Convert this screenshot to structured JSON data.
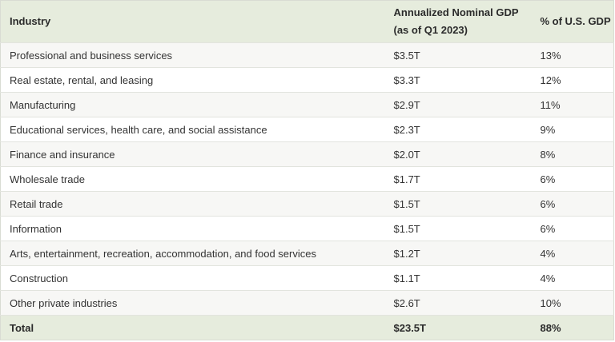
{
  "table": {
    "headers": {
      "industry": "Industry",
      "gdp": "Annualized Nominal GDP (as of Q1 2023)",
      "share": "% of U.S. GDP"
    },
    "rows": [
      {
        "industry": "Professional and business services",
        "gdp": "$3.5T",
        "share": "13%"
      },
      {
        "industry": "Real estate, rental, and leasing",
        "gdp": "$3.3T",
        "share": "12%"
      },
      {
        "industry": "Manufacturing",
        "gdp": "$2.9T",
        "share": "11%"
      },
      {
        "industry": "Educational services, health care, and social assistance",
        "gdp": "$2.3T",
        "share": "9%"
      },
      {
        "industry": "Finance and insurance",
        "gdp": "$2.0T",
        "share": "8%"
      },
      {
        "industry": "Wholesale trade",
        "gdp": "$1.7T",
        "share": "6%"
      },
      {
        "industry": "Retail trade",
        "gdp": "$1.5T",
        "share": "6%"
      },
      {
        "industry": "Information",
        "gdp": "$1.5T",
        "share": "6%"
      },
      {
        "industry": "Arts, entertainment, recreation, accommodation, and food services",
        "gdp": "$1.2T",
        "share": "4%"
      },
      {
        "industry": "Construction",
        "gdp": "$1.1T",
        "share": "4%"
      },
      {
        "industry": "Other private industries",
        "gdp": "$2.6T",
        "share": "10%"
      }
    ],
    "total": {
      "industry": "Total",
      "gdp": "$23.5T",
      "share": "88%"
    }
  }
}
